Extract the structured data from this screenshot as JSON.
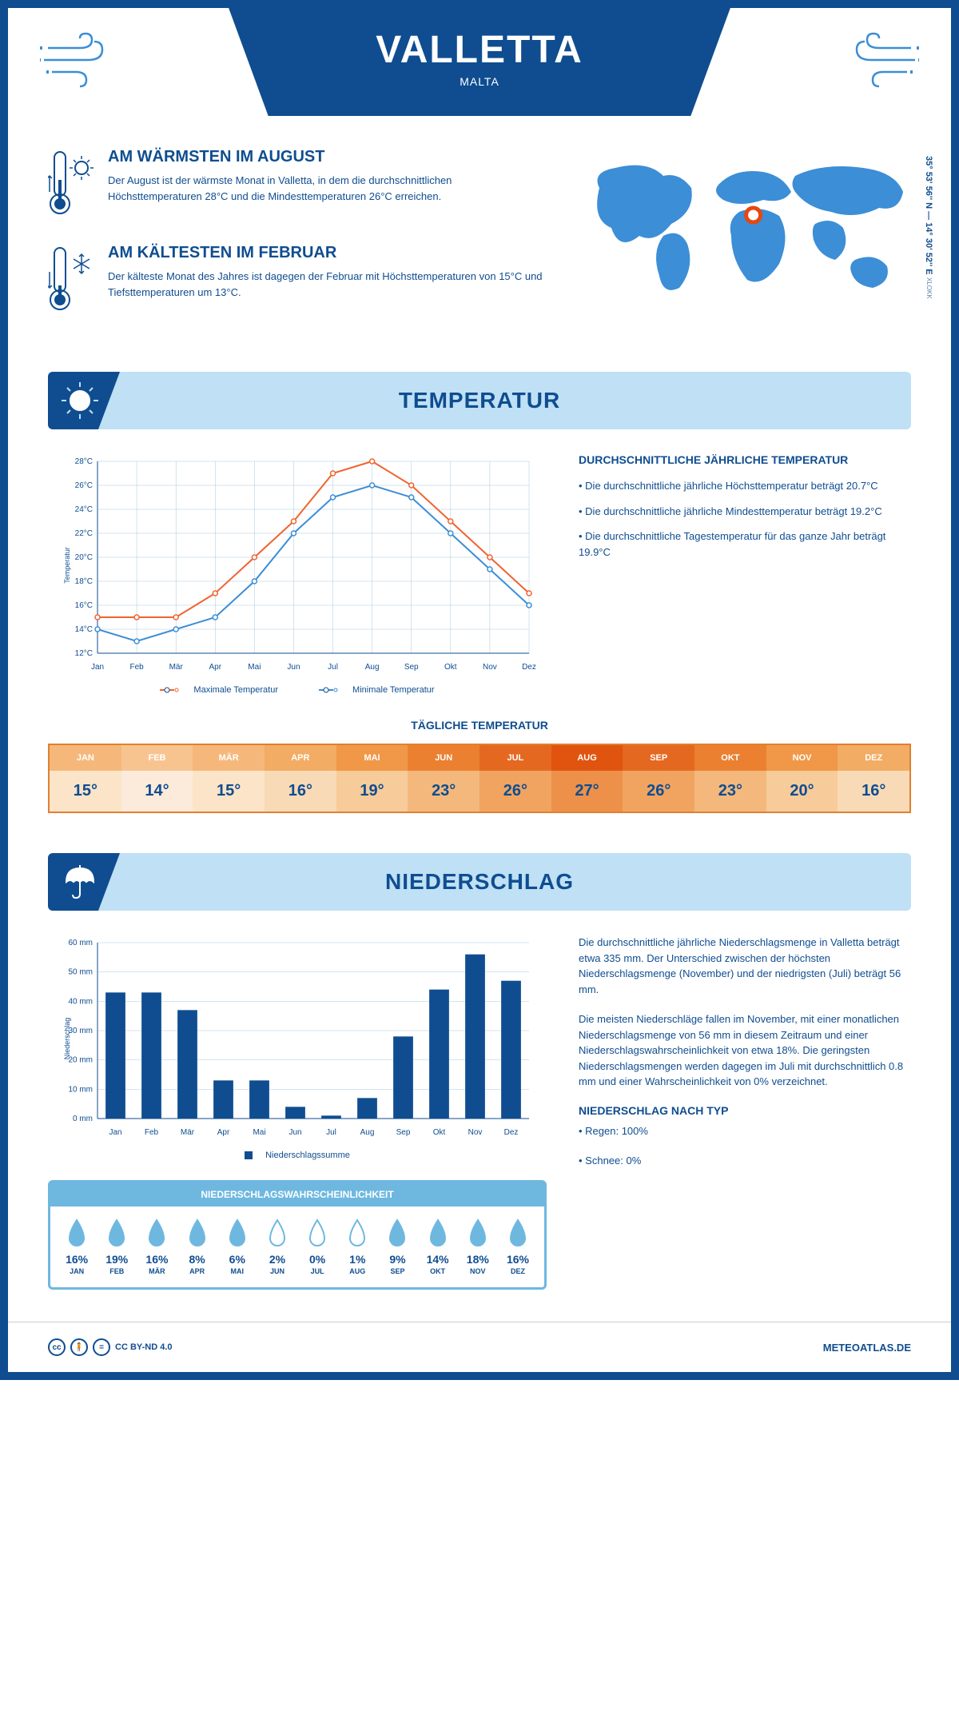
{
  "header": {
    "city": "VALLETTA",
    "country": "MALTA"
  },
  "coords": {
    "text": "35° 53' 56'' N — 14° 30' 52'' E",
    "src": "XLOKK"
  },
  "map": {
    "marker_x": 0.53,
    "marker_y": 0.42,
    "land_color": "#3c8ed6",
    "marker_color": "#e84610"
  },
  "warm": {
    "title": "AM WÄRMSTEN IM AUGUST",
    "text": "Der August ist der wärmste Monat in Valletta, in dem die durchschnittlichen Höchsttemperaturen 28°C und die Mindesttemperaturen 26°C erreichen."
  },
  "cold": {
    "title": "AM KÄLTESTEN IM FEBRUAR",
    "text": "Der kälteste Monat des Jahres ist dagegen der Februar mit Höchsttemperaturen von 15°C und Tiefsttemperaturen um 13°C."
  },
  "sections": {
    "temp": "TEMPERATUR",
    "precip": "NIEDERSCHLAG"
  },
  "temp_chart": {
    "type": "line",
    "months": [
      "Jan",
      "Feb",
      "Mär",
      "Apr",
      "Mai",
      "Jun",
      "Jul",
      "Aug",
      "Sep",
      "Okt",
      "Nov",
      "Dez"
    ],
    "series": [
      {
        "name": "Maximale Temperatur",
        "color": "#f0642f",
        "values": [
          15,
          15,
          15,
          17,
          20,
          23,
          27,
          28,
          26,
          23,
          20,
          17
        ]
      },
      {
        "name": "Minimale Temperatur",
        "color": "#3c8ed6",
        "values": [
          14,
          13,
          14,
          15,
          18,
          22,
          25,
          26,
          25,
          22,
          19,
          16
        ]
      }
    ],
    "ylim": [
      12,
      28
    ],
    "ytick_step": 2,
    "yunit": "°C",
    "ylabel": "Temperatur",
    "grid_color": "#a8c8e0",
    "legend": {
      "max": "Maximale Temperatur",
      "min": "Minimale Temperatur"
    }
  },
  "temp_info": {
    "title": "DURCHSCHNITTLICHE JÄHRLICHE TEMPERATUR",
    "items": [
      "• Die durchschnittliche jährliche Höchsttemperatur beträgt 20.7°C",
      "• Die durchschnittliche jährliche Mindesttemperatur beträgt 19.2°C",
      "• Die durchschnittliche Tagestemperatur für das ganze Jahr beträgt 19.9°C"
    ]
  },
  "daily_temp": {
    "title": "TÄGLICHE TEMPERATUR",
    "months": [
      "JAN",
      "FEB",
      "MÄR",
      "APR",
      "MAI",
      "JUN",
      "JUL",
      "AUG",
      "SEP",
      "OKT",
      "NOV",
      "DEZ"
    ],
    "values": [
      "15°",
      "14°",
      "15°",
      "16°",
      "19°",
      "23°",
      "26°",
      "27°",
      "26°",
      "23°",
      "20°",
      "16°"
    ],
    "header_colors": [
      "#f5b87a",
      "#f7c490",
      "#f5b87a",
      "#f3ac64",
      "#f09848",
      "#ea8030",
      "#e56820",
      "#e05410",
      "#e56820",
      "#ea8030",
      "#f09848",
      "#f3ac64"
    ],
    "cell_colors": [
      "#fbe4c8",
      "#fceadb",
      "#fbe4c8",
      "#f9dab6",
      "#f7cb9a",
      "#f4b87c",
      "#f0a460",
      "#ec904a",
      "#f0a460",
      "#f4b87c",
      "#f7cb9a",
      "#f9dab6"
    ]
  },
  "precip_chart": {
    "type": "bar",
    "months": [
      "Jan",
      "Feb",
      "Mär",
      "Apr",
      "Mai",
      "Jun",
      "Jul",
      "Aug",
      "Sep",
      "Okt",
      "Nov",
      "Dez"
    ],
    "values": [
      43,
      43,
      37,
      13,
      13,
      4,
      1,
      7,
      28,
      44,
      56,
      47
    ],
    "bar_color": "#0f4d90",
    "ylim": [
      0,
      60
    ],
    "ytick_step": 10,
    "yunit": " mm",
    "ylabel": "Niederschlag",
    "grid_color": "#a8c8e0",
    "legend": "Niederschlagssumme"
  },
  "prob": {
    "title": "NIEDERSCHLAGSWAHRSCHEINLICHKEIT",
    "months": [
      "JAN",
      "FEB",
      "MÄR",
      "APR",
      "MAI",
      "JUN",
      "JUL",
      "AUG",
      "SEP",
      "OKT",
      "NOV",
      "DEZ"
    ],
    "values": [
      16,
      19,
      16,
      8,
      6,
      2,
      0,
      1,
      9,
      14,
      18,
      16
    ],
    "fill_color": "#6eb8e0",
    "empty_threshold": 3
  },
  "precip_info": {
    "p1": "Die durchschnittliche jährliche Niederschlagsmenge in Valletta beträgt etwa 335 mm. Der Unterschied zwischen der höchsten Niederschlagsmenge (November) und der niedrigsten (Juli) beträgt 56 mm.",
    "p2": "Die meisten Niederschläge fallen im November, mit einer monatlichen Niederschlagsmenge von 56 mm in diesem Zeitraum und einer Niederschlagswahrscheinlichkeit von etwa 18%. Die geringsten Niederschlagsmengen werden dagegen im Juli mit durchschnittlich 0.8 mm und einer Wahrscheinlichkeit von 0% verzeichnet.",
    "type_title": "NIEDERSCHLAG NACH TYP",
    "type_items": [
      "• Regen: 100%",
      "• Schnee: 0%"
    ]
  },
  "footer": {
    "license": "CC BY-ND 4.0",
    "site": "METEOATLAS.DE"
  },
  "colors": {
    "primary": "#0f4d90",
    "light": "#bfe0f5",
    "accent": "#3c8ed6"
  }
}
